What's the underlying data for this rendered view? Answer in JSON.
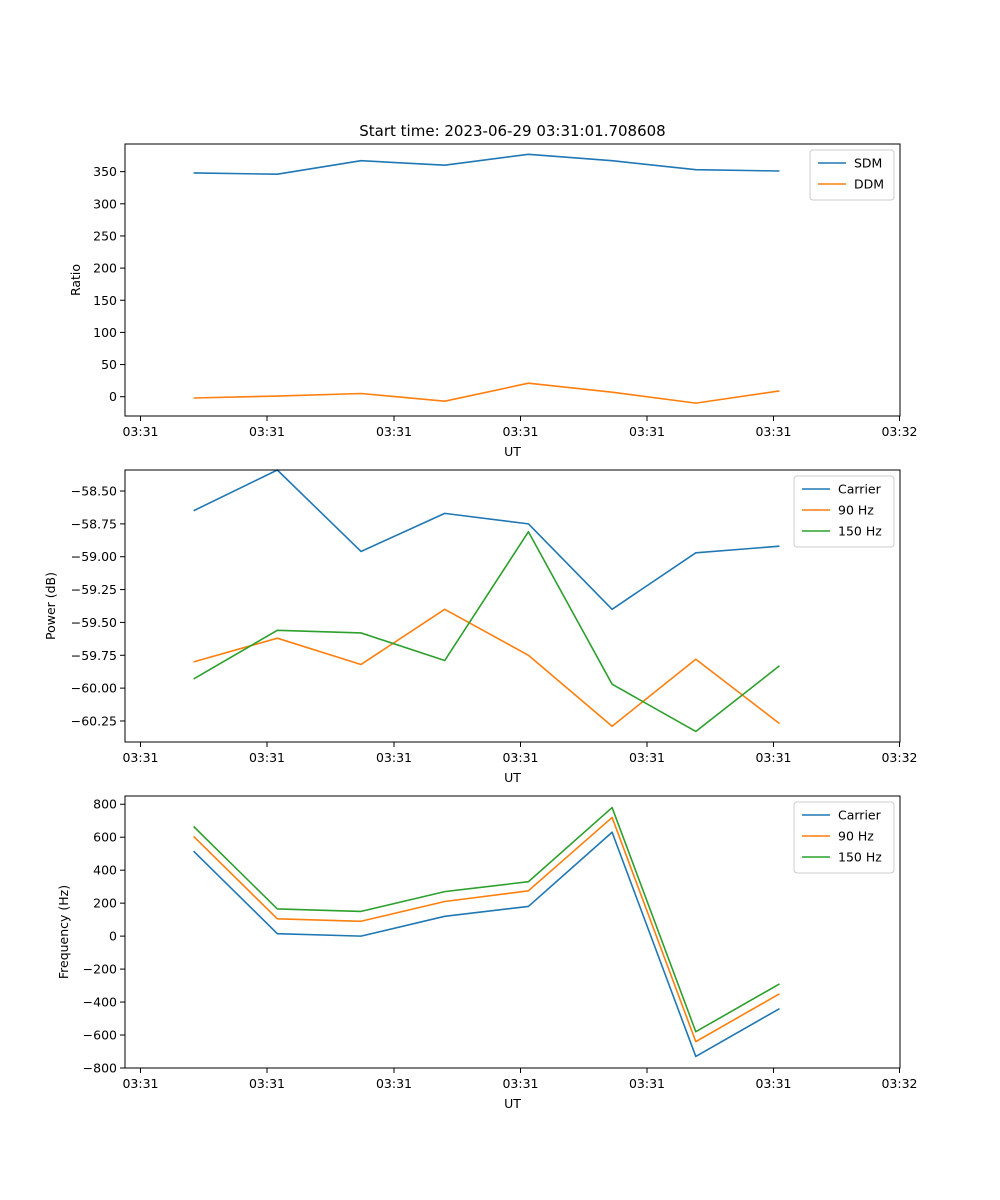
{
  "figure": {
    "title": "Start time: 2023-06-29 03:31:01.708608"
  },
  "x_tick_labels": [
    "03:31",
    "03:31",
    "03:31",
    "03:31",
    "03:31",
    "03:31",
    "03:31",
    "03:32"
  ],
  "chart_data": [
    {
      "type": "line",
      "title": "Start time: 2023-06-29 03:31:01.708608",
      "xlabel": "UT",
      "ylabel": "Ratio",
      "x": [
        1,
        2,
        3,
        4,
        5,
        6,
        7,
        8
      ],
      "xlim": [
        0.18,
        9.44
      ],
      "ylim": [
        -30,
        393
      ],
      "yticks": [
        0,
        50,
        100,
        150,
        200,
        250,
        300,
        350
      ],
      "legend": "top-right",
      "grid": false,
      "series": [
        {
          "name": "SDM",
          "color": "#1f77b4",
          "values": [
            348,
            346,
            367,
            360,
            377,
            367,
            353,
            351
          ]
        },
        {
          "name": "DDM",
          "color": "#ff7f0e",
          "values": [
            -2,
            1,
            5,
            -7,
            21,
            7,
            -10,
            9
          ]
        }
      ]
    },
    {
      "type": "line",
      "xlabel": "UT",
      "ylabel": "Power (dB)",
      "x": [
        1,
        2,
        3,
        4,
        5,
        6,
        7,
        8
      ],
      "xlim": [
        0.18,
        9.44
      ],
      "ylim": [
        -60.41,
        -58.34
      ],
      "yticks": [
        -60.25,
        -60.0,
        -59.75,
        -59.5,
        -59.25,
        -59.0,
        -58.75,
        -58.5
      ],
      "ytick_labels": [
        "−60.25",
        "−60.00",
        "−59.75",
        "−59.50",
        "−59.25",
        "−59.00",
        "−58.75",
        "−58.50"
      ],
      "legend": "top-right",
      "grid": false,
      "series": [
        {
          "name": "Carrier",
          "color": "#1f77b4",
          "values": [
            -58.65,
            -58.34,
            -58.96,
            -58.67,
            -58.75,
            -59.4,
            -58.97,
            -58.92
          ]
        },
        {
          "name": "90 Hz",
          "color": "#ff7f0e",
          "values": [
            -59.8,
            -59.62,
            -59.82,
            -59.4,
            -59.75,
            -60.29,
            -59.78,
            -60.27
          ]
        },
        {
          "name": "150 Hz",
          "color": "#2ca02c",
          "values": [
            -59.93,
            -59.56,
            -59.58,
            -59.79,
            -58.81,
            -59.97,
            -60.33,
            -59.83
          ]
        }
      ]
    },
    {
      "type": "line",
      "xlabel": "UT",
      "ylabel": "Frequency (Hz)",
      "x": [
        1,
        2,
        3,
        4,
        5,
        6,
        7,
        8
      ],
      "xlim": [
        0.18,
        9.44
      ],
      "ylim": [
        -800,
        850
      ],
      "yticks": [
        -800,
        -600,
        -400,
        -200,
        0,
        200,
        400,
        600,
        800
      ],
      "ytick_labels": [
        "−800",
        "−600",
        "−400",
        "−200",
        "0",
        "200",
        "400",
        "600",
        "800"
      ],
      "legend": "top-right",
      "grid": false,
      "series": [
        {
          "name": "Carrier",
          "color": "#1f77b4",
          "values": [
            515,
            15,
            0,
            120,
            180,
            630,
            -730,
            -440
          ]
        },
        {
          "name": "90 Hz",
          "color": "#ff7f0e",
          "values": [
            605,
            105,
            90,
            210,
            275,
            720,
            -640,
            -350
          ]
        },
        {
          "name": "150 Hz",
          "color": "#2ca02c",
          "values": [
            665,
            165,
            150,
            270,
            330,
            780,
            -580,
            -290
          ]
        }
      ]
    }
  ]
}
